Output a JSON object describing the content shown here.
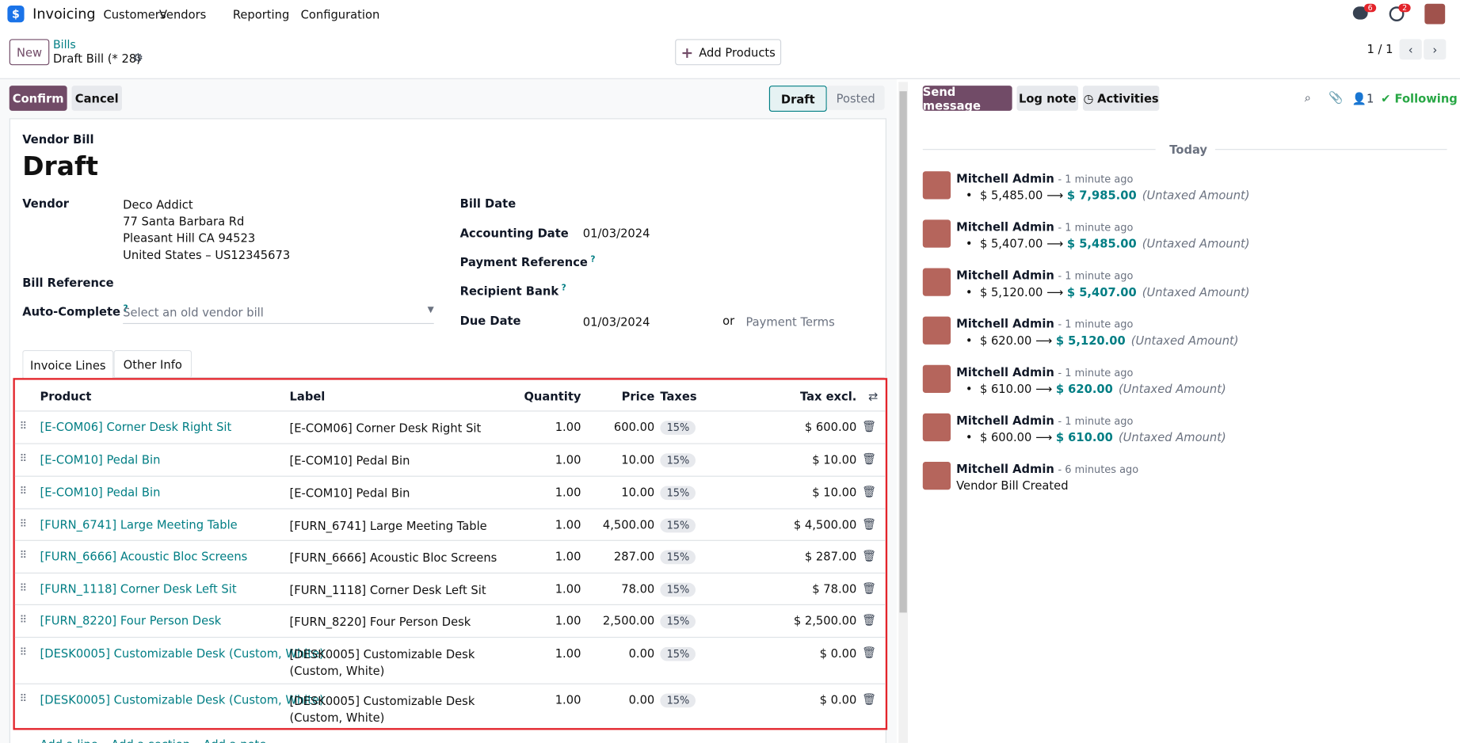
{
  "nav": {
    "brand": "Invoicing",
    "menu": [
      "Customers",
      "Vendors",
      "Reporting",
      "Configuration"
    ],
    "chat_badge": "6",
    "activity_badge": "2"
  },
  "control": {
    "new": "New",
    "breadcrumb": "Bills",
    "record": "Draft Bill (* 28)",
    "add_products": "Add Products",
    "pager": "1 / 1"
  },
  "actions": {
    "confirm": "Confirm",
    "cancel": "Cancel",
    "status": [
      "Draft",
      "Posted"
    ]
  },
  "form": {
    "doc_type": "Vendor Bill",
    "title": "Draft",
    "vendor_label": "Vendor",
    "vendor_lines": [
      "Deco Addict",
      "77 Santa Barbara Rd",
      "Pleasant Hill CA 94523",
      "United States – US12345673"
    ],
    "bill_reference_label": "Bill Reference",
    "auto_complete_label": "Auto-Complete",
    "auto_complete_help": "?",
    "auto_complete_placeholder": "Select an old vendor bill",
    "bill_date_label": "Bill Date",
    "accounting_date_label": "Accounting Date",
    "accounting_date": "01/03/2024",
    "payment_reference_label": "Payment Reference",
    "payment_reference_help": "?",
    "recipient_bank_label": "Recipient Bank",
    "recipient_bank_help": "?",
    "due_date_label": "Due Date",
    "due_date": "01/03/2024",
    "or": "or",
    "payment_terms_placeholder": "Payment Terms"
  },
  "tabs": [
    "Invoice Lines",
    "Other Info"
  ],
  "table": {
    "headers": [
      "Product",
      "Label",
      "Quantity",
      "Price",
      "Taxes",
      "Tax excl."
    ],
    "rows": [
      [
        "[E-COM06] Corner Desk Right Sit",
        "[E-COM06] Corner Desk Right Sit",
        "1.00",
        "600.00",
        "15%",
        "$ 600.00"
      ],
      [
        "[E-COM10] Pedal Bin",
        "[E-COM10] Pedal Bin",
        "1.00",
        "10.00",
        "15%",
        "$ 10.00"
      ],
      [
        "[E-COM10] Pedal Bin",
        "[E-COM10] Pedal Bin",
        "1.00",
        "10.00",
        "15%",
        "$ 10.00"
      ],
      [
        "[FURN_6741] Large Meeting Table",
        "[FURN_6741] Large Meeting Table",
        "1.00",
        "4,500.00",
        "15%",
        "$ 4,500.00"
      ],
      [
        "[FURN_6666] Acoustic Bloc Screens",
        "[FURN_6666] Acoustic Bloc Screens",
        "1.00",
        "287.00",
        "15%",
        "$ 287.00"
      ],
      [
        "[FURN_1118] Corner Desk Left Sit",
        "[FURN_1118] Corner Desk Left Sit",
        "1.00",
        "78.00",
        "15%",
        "$ 78.00"
      ],
      [
        "[FURN_8220] Four Person Desk",
        "[FURN_8220] Four Person Desk",
        "1.00",
        "2,500.00",
        "15%",
        "$ 2,500.00"
      ],
      [
        "[DESK0005] Customizable Desk (Custom, White)",
        "[DESK0005] Customizable Desk (Custom, White)",
        "1.00",
        "0.00",
        "15%",
        "$ 0.00"
      ],
      [
        "[DESK0005] Customizable Desk (Custom, White)",
        "[DESK0005] Customizable Desk (Custom, White)",
        "1.00",
        "0.00",
        "15%",
        "$ 0.00"
      ]
    ],
    "add_links": [
      "Add a line",
      "Add a section",
      "Add a note"
    ]
  },
  "chatter": {
    "send_message": "Send message",
    "log_note": "Log note",
    "activities": "Activities",
    "followers": "1",
    "following": "Following",
    "day": "Today",
    "messages": [
      {
        "author": "Mitchell Admin",
        "time": "- 1 minute ago",
        "old": "$ 5,485.00",
        "new": "$ 7,985.00",
        "field": "(Untaxed Amount)"
      },
      {
        "author": "Mitchell Admin",
        "time": "- 1 minute ago",
        "old": "$ 5,407.00",
        "new": "$ 5,485.00",
        "field": "(Untaxed Amount)"
      },
      {
        "author": "Mitchell Admin",
        "time": "- 1 minute ago",
        "old": "$ 5,120.00",
        "new": "$ 5,407.00",
        "field": "(Untaxed Amount)"
      },
      {
        "author": "Mitchell Admin",
        "time": "- 1 minute ago",
        "old": "$ 620.00",
        "new": "$ 5,120.00",
        "field": "(Untaxed Amount)"
      },
      {
        "author": "Mitchell Admin",
        "time": "- 1 minute ago",
        "old": "$ 610.00",
        "new": "$ 620.00",
        "field": "(Untaxed Amount)"
      },
      {
        "author": "Mitchell Admin",
        "time": "- 1 minute ago",
        "old": "$ 600.00",
        "new": "$ 610.00",
        "field": "(Untaxed Amount)"
      }
    ],
    "created": {
      "author": "Mitchell Admin",
      "time": "- 6 minutes ago",
      "body": "Vendor Bill Created"
    }
  }
}
